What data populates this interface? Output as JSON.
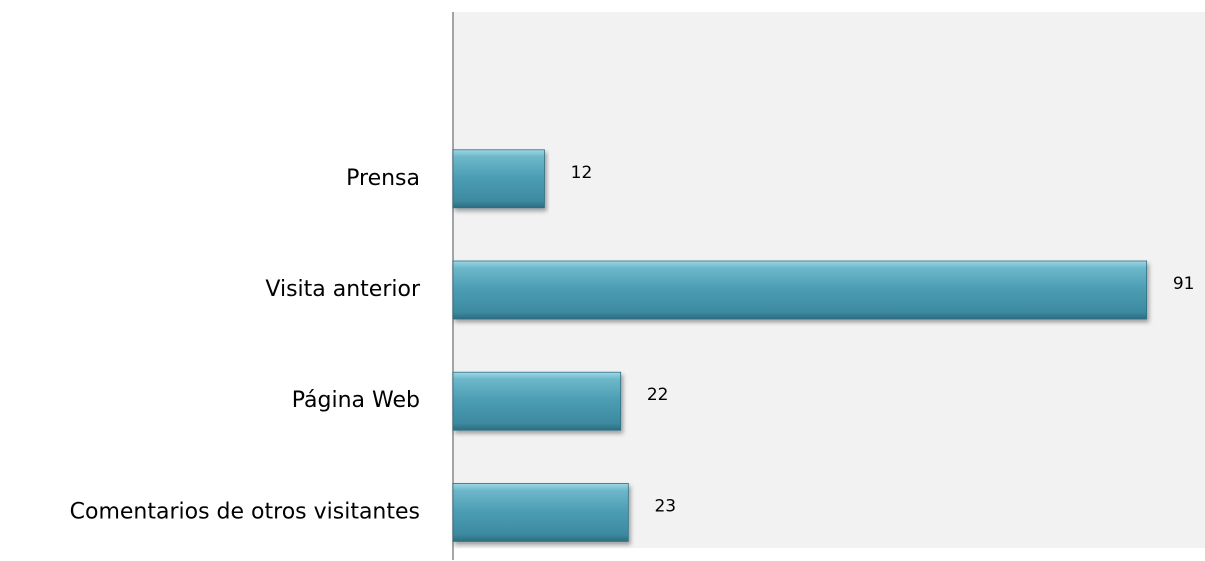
{
  "chart_data": {
    "type": "barh",
    "categories": [
      null,
      "Prensa",
      "Visita anterior",
      "Página Web",
      "Comentarios de otros visitantes"
    ],
    "values": [
      null,
      12,
      91,
      22,
      23
    ],
    "color": "#4a9cb2",
    "xlim": [
      0,
      98
    ]
  }
}
